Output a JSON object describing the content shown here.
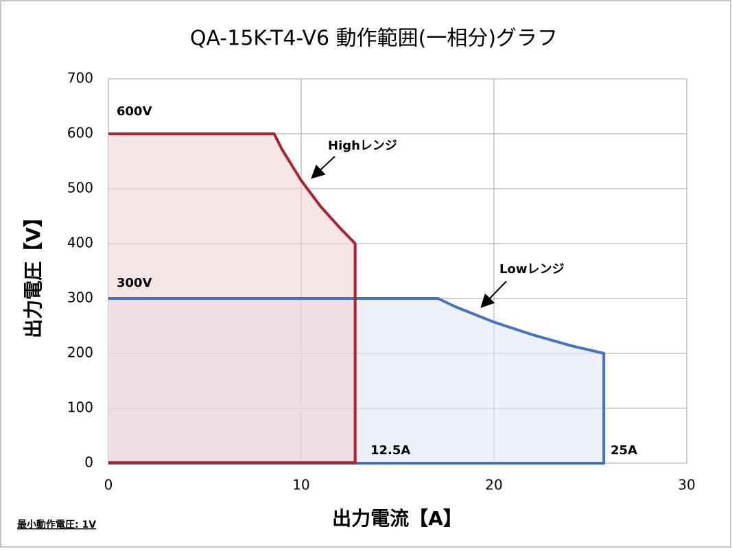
{
  "chart_data": {
    "type": "line",
    "title": "QA-15K-T4-V6  動作範囲(一相分)グラフ",
    "x_label": "出力電流【A】",
    "y_label": "出力電圧【V】",
    "xlim": [
      0,
      30
    ],
    "xticks": [
      0,
      10,
      20,
      30
    ],
    "ylim": [
      0,
      700
    ],
    "yticks": [
      0,
      100,
      200,
      300,
      400,
      500,
      600,
      700
    ],
    "grid": true,
    "series": [
      {
        "name": "Lowレンジ",
        "color": "#4472c4",
        "fill": "#dfe6f3",
        "x": [
          0,
          17.1,
          18,
          20,
          22,
          24,
          25.7,
          25.7,
          0
        ],
        "values": [
          300,
          300,
          285,
          257,
          234,
          214,
          200,
          0,
          0
        ]
      },
      {
        "name": "Highレンジ",
        "color": "#b01f2e",
        "fill": "#f0d3d3",
        "x": [
          0,
          8.6,
          9,
          10,
          11,
          12,
          12.8,
          12.8,
          0
        ],
        "values": [
          600,
          600,
          572,
          515,
          468,
          429,
          400,
          1,
          1
        ]
      }
    ],
    "annotations": [
      "600V",
      "300V",
      "12.5A",
      "25A"
    ],
    "footnote": "最小動作電圧: 1V"
  }
}
